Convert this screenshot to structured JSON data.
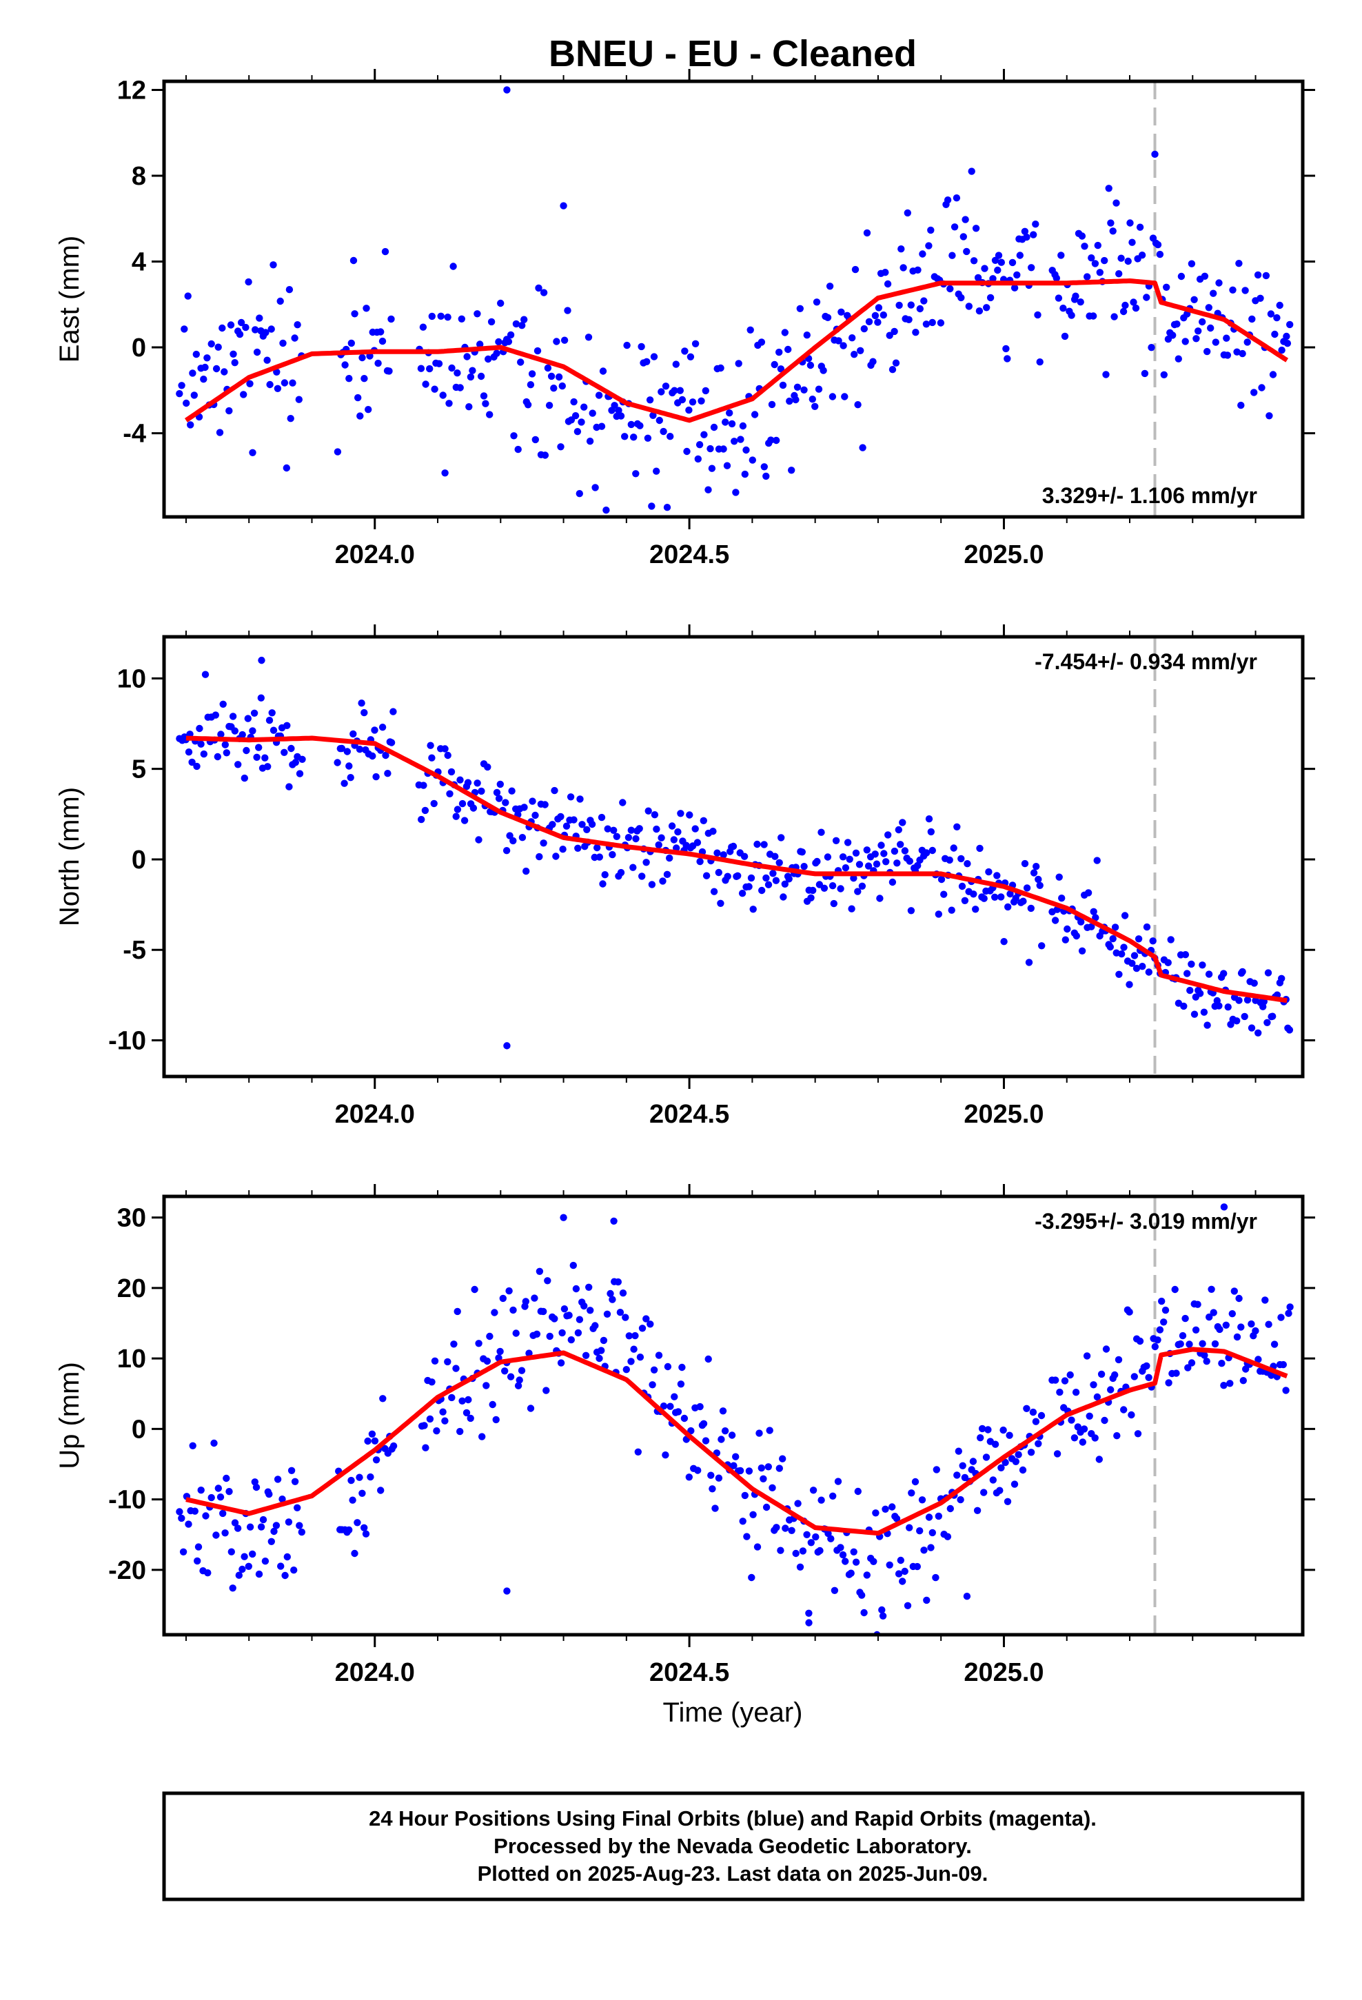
{
  "title": "BNEU  - EU - Cleaned",
  "x_axis": {
    "label": "Time (year)",
    "ticks": [
      2024.0,
      2024.5,
      2025.0
    ],
    "tick_labels": [
      "2024.0",
      "2024.5",
      "2025.0"
    ],
    "minor_step": 0.1,
    "range": [
      2023.665,
      2025.475
    ]
  },
  "equipment_change_epoch": 2025.24,
  "footer": {
    "line1": "24 Hour Positions Using Final Orbits (blue) and Rapid Orbits (magenta).",
    "line2": "Processed by the Nevada Geodetic Laboratory.",
    "line3": "Plotted on 2025-Aug-23. Last data on 2025-Jun-09."
  },
  "colors": {
    "data": "#0000ff",
    "model": "#ff0000",
    "offset_line": "#bbbbbb",
    "frame": "#000000"
  },
  "chart_data": [
    {
      "type": "scatter",
      "name": "east",
      "ylabel": "East (mm)",
      "ylim": [
        -7.9,
        12.4
      ],
      "yticks": [
        -4,
        0,
        4,
        8,
        12
      ],
      "rate_label": "3.329+/- 1.106 mm/yr",
      "rate_position": "bottom-right",
      "model": {
        "x": [
          2023.7,
          2023.8,
          2023.9,
          2024.0,
          2024.1,
          2024.2,
          2024.3,
          2024.4,
          2024.5,
          2024.6,
          2024.7,
          2024.8,
          2024.9,
          2025.0,
          2025.1,
          2025.2,
          2025.24,
          2025.25,
          2025.35,
          2025.45
        ],
        "y": [
          -3.4,
          -1.4,
          -0.3,
          -0.2,
          -0.2,
          0.0,
          -0.9,
          -2.6,
          -3.4,
          -2.4,
          0.0,
          2.3,
          3.0,
          3.0,
          3.0,
          3.1,
          3.0,
          2.1,
          1.3,
          -0.6
        ]
      },
      "points": {
        "trend": {
          "x": [
            2023.7,
            2023.9,
            2024.0,
            2024.2,
            2024.35,
            2024.5,
            2024.6,
            2024.75,
            2024.9,
            2025.1,
            2025.24,
            2025.3,
            2025.45
          ],
          "y": [
            -1.0,
            -0.5,
            -0.5,
            -0.2,
            -2.5,
            -3.8,
            -2.8,
            0.5,
            3.5,
            3.0,
            3.2,
            1.5,
            0.0
          ]
        },
        "count": 520,
        "scatter_sd": 1.9,
        "seed": 17,
        "outliers": {
          "x": [
            2024.21,
            2024.3,
            2025.24,
            2024.44
          ],
          "y": [
            12.0,
            6.6,
            9.0,
            -7.4
          ]
        },
        "gaps": [
          [
            2023.885,
            2023.94
          ],
          [
            2024.03,
            2024.07
          ],
          [
            2025.06,
            2025.075
          ]
        ]
      }
    },
    {
      "type": "scatter",
      "name": "north",
      "ylabel": "North (mm)",
      "ylim": [
        -12.0,
        12.3
      ],
      "yticks": [
        -10,
        -5,
        0,
        5,
        10
      ],
      "rate_label": "-7.454+/- 0.934 mm/yr",
      "rate_position": "top-right",
      "model": {
        "x": [
          2023.7,
          2023.8,
          2023.9,
          2024.0,
          2024.1,
          2024.2,
          2024.3,
          2024.4,
          2024.5,
          2024.6,
          2024.7,
          2024.8,
          2024.9,
          2025.0,
          2025.1,
          2025.2,
          2025.24,
          2025.25,
          2025.35,
          2025.45
        ],
        "y": [
          6.7,
          6.6,
          6.7,
          6.4,
          4.6,
          2.6,
          1.2,
          0.7,
          0.3,
          -0.3,
          -0.8,
          -0.8,
          -0.8,
          -1.5,
          -2.7,
          -4.5,
          -5.4,
          -6.4,
          -7.3,
          -7.8
        ]
      },
      "points": {
        "trend": {
          "x": [
            2023.7,
            2023.9,
            2024.0,
            2024.1,
            2024.2,
            2024.3,
            2024.5,
            2024.7,
            2024.9,
            2025.0,
            2025.1,
            2025.24,
            2025.3,
            2025.45
          ],
          "y": [
            6.9,
            6.3,
            6.2,
            4.8,
            2.6,
            1.5,
            0.4,
            -0.9,
            -0.4,
            -1.6,
            -3.2,
            -5.5,
            -7.2,
            -7.9
          ]
        },
        "count": 520,
        "scatter_sd": 1.15,
        "seed": 29,
        "outliers": {
          "x": [
            2024.21,
            2023.82
          ],
          "y": [
            -10.3,
            11.0
          ]
        },
        "gaps": [
          [
            2023.885,
            2023.94
          ],
          [
            2024.03,
            2024.07
          ],
          [
            2025.06,
            2025.075
          ]
        ]
      }
    },
    {
      "type": "scatter",
      "name": "up",
      "ylabel": "Up (mm)",
      "ylim": [
        -29.2,
        33.0
      ],
      "yticks": [
        -20,
        -10,
        0,
        10,
        20,
        30
      ],
      "rate_label": "-3.295+/- 3.019 mm/yr",
      "rate_position": "top-right",
      "model": {
        "x": [
          2023.7,
          2023.8,
          2023.9,
          2024.0,
          2024.1,
          2024.2,
          2024.3,
          2024.4,
          2024.5,
          2024.6,
          2024.7,
          2024.8,
          2024.9,
          2025.0,
          2025.1,
          2025.2,
          2025.24,
          2025.25,
          2025.3,
          2025.35,
          2025.45
        ],
        "y": [
          -10.0,
          -12.0,
          -9.5,
          -3.0,
          4.5,
          9.5,
          10.8,
          7.0,
          -1.0,
          -8.5,
          -14.0,
          -14.8,
          -10.5,
          -4.0,
          2.0,
          5.5,
          6.5,
          10.5,
          11.3,
          11.0,
          7.5
        ]
      },
      "points": {
        "trend": {
          "x": [
            2023.7,
            2023.8,
            2023.9,
            2024.0,
            2024.1,
            2024.2,
            2024.3,
            2024.4,
            2024.5,
            2024.6,
            2024.7,
            2024.8,
            2024.9,
            2025.0,
            2025.1,
            2025.24,
            2025.3,
            2025.45
          ],
          "y": [
            -12.0,
            -16.0,
            -12.0,
            -6.0,
            4.0,
            11.0,
            16.0,
            12.0,
            0.0,
            -8.0,
            -16.0,
            -20.0,
            -12.0,
            -4.0,
            2.0,
            10.0,
            14.0,
            10.0
          ]
        },
        "count": 520,
        "scatter_sd": 4.6,
        "seed": 41,
        "outliers": {
          "x": [
            2024.21,
            2024.3,
            2024.38,
            2025.35,
            2024.69
          ],
          "y": [
            -23.0,
            30.0,
            29.5,
            31.5,
            -27.5
          ]
        },
        "gaps": [
          [
            2023.885,
            2023.94
          ],
          [
            2024.03,
            2024.07
          ],
          [
            2025.06,
            2025.075
          ]
        ]
      }
    }
  ]
}
